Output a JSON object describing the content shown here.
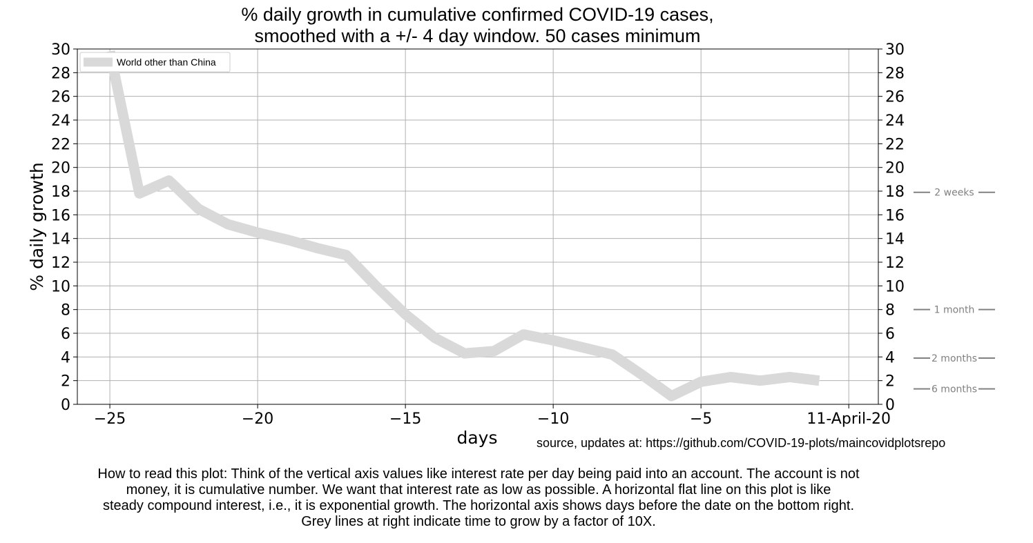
{
  "chart_data": {
    "type": "line",
    "title_lines": [
      "% daily growth in cumulative confirmed COVID-19 cases,",
      "smoothed with a +/- 4 day window. 50 cases minimum"
    ],
    "xlabel": "days",
    "ylabel": "% daily growth",
    "xlim": [
      -26.1,
      1.0
    ],
    "ylim": [
      0,
      30
    ],
    "x_ticks": [
      -25,
      -20,
      -15,
      -10,
      -5,
      0
    ],
    "x_tick_labels": [
      "−25",
      "−20",
      "−15",
      "−10",
      "−5",
      "11-April-20"
    ],
    "y_ticks": [
      0,
      2,
      4,
      6,
      8,
      10,
      12,
      14,
      16,
      18,
      20,
      22,
      24,
      26,
      28,
      30
    ],
    "y_tick_labels": [
      "0",
      "2",
      "4",
      "6",
      "8",
      "10",
      "12",
      "14",
      "16",
      "18",
      "20",
      "22",
      "24",
      "26",
      "28",
      "30"
    ],
    "grid": true,
    "legend_position": "top-left",
    "series": [
      {
        "name": "World other than China",
        "color": "#d9d9d9",
        "x": [
          -25,
          -24,
          -23,
          -22,
          -21,
          -20,
          -19,
          -18,
          -17,
          -16,
          -15,
          -14,
          -13,
          -12,
          -11,
          -10,
          -9,
          -8,
          -7,
          -6,
          -5,
          -4,
          -3,
          -2,
          -1
        ],
        "y": [
          29.8,
          17.8,
          18.9,
          16.5,
          15.2,
          14.5,
          13.9,
          13.2,
          12.6,
          10.0,
          7.6,
          5.6,
          4.3,
          4.5,
          5.9,
          5.4,
          4.8,
          4.2,
          2.5,
          0.7,
          1.9,
          2.3,
          2.0,
          2.3,
          2.0
        ]
      }
    ],
    "doubling_reference_lines": [
      {
        "label": "2 weeks",
        "y": 17.9
      },
      {
        "label": "1 month",
        "y": 8.0
      },
      {
        "label": "2 months",
        "y": 3.9
      },
      {
        "label": "6 months",
        "y": 1.3
      }
    ]
  },
  "source_note": "source, updates at: https://github.com/COVID-19-plots/maincovidplotsrepo",
  "caption_lines": [
    "How to read this plot: Think of the vertical axis values like interest rate per day being paid into an account. The account is not",
    "money, it is cumulative number. We want that interest rate as low as possible. A horizontal flat line on this plot is like",
    "steady compound interest, i.e., it is exponential growth. The horizontal axis shows days before the date on the bottom right.",
    "Grey lines at right indicate time to grow by a factor of 10X."
  ]
}
